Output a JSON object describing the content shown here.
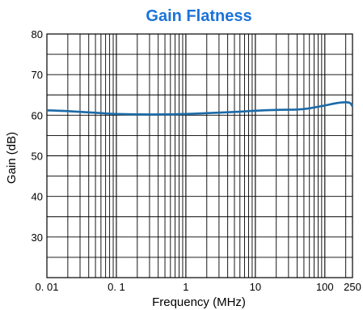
{
  "chart_data": {
    "type": "line",
    "title": "Gain Flatness",
    "xlabel": "Frequency (MHz)",
    "ylabel": "Gain (dB)",
    "x_scale": "log",
    "xlim": [
      0.01,
      250
    ],
    "ylim": [
      20,
      80
    ],
    "x_ticks": [
      {
        "value": 0.01,
        "label": "0. 01"
      },
      {
        "value": 0.1,
        "label": "0. 1"
      },
      {
        "value": 1,
        "label": "1"
      },
      {
        "value": 10,
        "label": "10"
      },
      {
        "value": 100,
        "label": "100"
      },
      {
        "value": 250,
        "label": "250"
      }
    ],
    "y_ticks": [
      {
        "value": 30,
        "label": "30"
      },
      {
        "value": 40,
        "label": "40"
      },
      {
        "value": 50,
        "label": "50"
      },
      {
        "value": 60,
        "label": "60"
      },
      {
        "value": 70,
        "label": "70"
      },
      {
        "value": 80,
        "label": "80"
      }
    ],
    "grid": true,
    "title_color": "#1a73d9",
    "line_color": "#1a6aa8",
    "series": [
      {
        "x": [
          0.01,
          0.02,
          0.05,
          0.1,
          0.2,
          0.5,
          1,
          2,
          5,
          10,
          20,
          40,
          60,
          100,
          150,
          200,
          230,
          250
        ],
        "y": [
          61.2,
          61.0,
          60.6,
          60.3,
          60.2,
          60.2,
          60.3,
          60.5,
          60.8,
          61.1,
          61.3,
          61.4,
          61.7,
          62.4,
          63.0,
          63.2,
          63.0,
          62.2
        ]
      }
    ]
  }
}
